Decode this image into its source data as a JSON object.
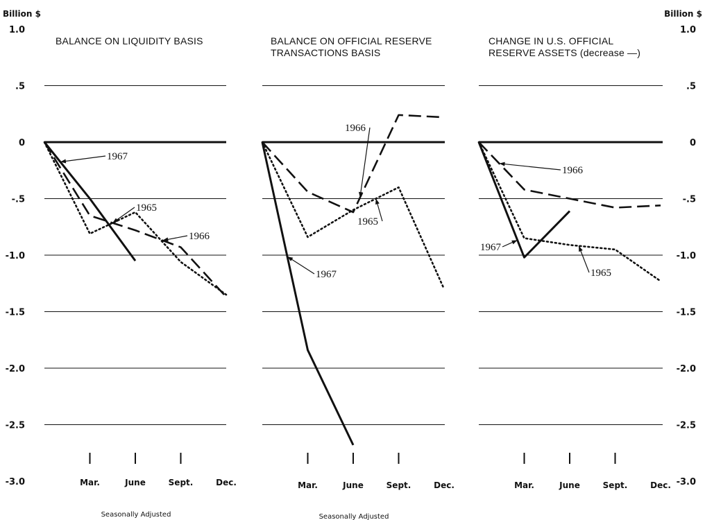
{
  "y_unit_label": "Billion $",
  "y_ticks": [
    "1.0",
    ".5",
    "0",
    "-.5",
    "-1.0",
    "-1.5",
    "-2.0",
    "-2.5",
    "-3.0"
  ],
  "y_ticks_right": [
    "1.0",
    ".5",
    "0",
    "-.5",
    "-1.0",
    "-1.5",
    "-2.0",
    "-2.5",
    "-3.0"
  ],
  "months": [
    "Mar.",
    "June",
    "Sept.",
    "Dec."
  ],
  "footnote": "Seasonally Adjusted",
  "chart_data": [
    {
      "type": "line",
      "title": [
        "BALANCE ON LIQUIDITY BASIS"
      ],
      "ylim": [
        -3.0,
        1.0
      ],
      "x_ticks": [
        "Mar.",
        "June",
        "Sept.",
        "Dec."
      ],
      "x_note": "Seasonally Adjusted",
      "series": [
        {
          "name": "1965",
          "style": "dotted",
          "points": [
            [
              0,
              0
            ],
            [
              1,
              -0.81
            ],
            [
              2,
              -0.62
            ],
            [
              3,
              -1.06
            ],
            [
              4,
              -1.35
            ]
          ]
        },
        {
          "name": "1966",
          "style": "dashed",
          "points": [
            [
              0,
              0
            ],
            [
              1,
              -0.65
            ],
            [
              2,
              -0.78
            ],
            [
              3,
              -0.93
            ],
            [
              4,
              -1.37
            ]
          ]
        },
        {
          "name": "1967",
          "style": "solid",
          "points": [
            [
              0,
              0
            ],
            [
              1,
              -0.5
            ],
            [
              2,
              -1.05
            ]
          ]
        }
      ],
      "labels": [
        {
          "text": "1967",
          "series": "1967"
        },
        {
          "text": "1965",
          "series": "1965"
        },
        {
          "text": "1966",
          "series": "1966"
        }
      ]
    },
    {
      "type": "line",
      "title": [
        "BALANCE ON OFFICIAL RESERVE",
        "TRANSACTIONS BASIS"
      ],
      "ylim": [
        -3.0,
        1.0
      ],
      "x_ticks": [
        "Mar.",
        "June",
        "Sept.",
        "Dec."
      ],
      "x_note": "Seasonally Adjusted",
      "series": [
        {
          "name": "1965",
          "style": "dotted",
          "points": [
            [
              0,
              0
            ],
            [
              1,
              -0.84
            ],
            [
              2,
              -0.6
            ],
            [
              3,
              -0.4
            ],
            [
              4,
              -1.3
            ]
          ]
        },
        {
          "name": "1966",
          "style": "dashed",
          "points": [
            [
              0,
              0
            ],
            [
              1,
              -0.44
            ],
            [
              2,
              -0.62
            ],
            [
              3,
              0.24
            ],
            [
              4,
              0.22
            ]
          ]
        },
        {
          "name": "1967",
          "style": "solid",
          "points": [
            [
              0,
              0
            ],
            [
              1,
              -1.84
            ],
            [
              2,
              -2.68
            ]
          ]
        }
      ],
      "labels": [
        {
          "text": "1966",
          "series": "1966"
        },
        {
          "text": "1965",
          "series": "1965"
        },
        {
          "text": "1967",
          "series": "1967"
        }
      ]
    },
    {
      "type": "line",
      "title": [
        "CHANGE IN U.S. OFFICIAL",
        "RESERVE ASSETS (decrease —)"
      ],
      "ylim": [
        -3.0,
        1.0
      ],
      "x_ticks": [
        "Mar.",
        "June",
        "Sept.",
        "Dec."
      ],
      "x_note": "",
      "series": [
        {
          "name": "1965",
          "style": "dotted",
          "points": [
            [
              0,
              0
            ],
            [
              1,
              -0.85
            ],
            [
              2,
              -0.91
            ],
            [
              3,
              -0.95
            ],
            [
              4,
              -1.23
            ]
          ]
        },
        {
          "name": "1966",
          "style": "dashed",
          "points": [
            [
              0,
              0
            ],
            [
              1,
              -0.42
            ],
            [
              2,
              -0.5
            ],
            [
              3,
              -0.58
            ],
            [
              4,
              -0.56
            ]
          ]
        },
        {
          "name": "1967",
          "style": "solid",
          "points": [
            [
              0,
              0
            ],
            [
              1,
              -1.02
            ],
            [
              2,
              -0.61
            ]
          ]
        }
      ],
      "labels": [
        {
          "text": "1966",
          "series": "1966"
        },
        {
          "text": "1967",
          "series": "1967"
        },
        {
          "text": "1965",
          "series": "1965"
        }
      ]
    }
  ]
}
